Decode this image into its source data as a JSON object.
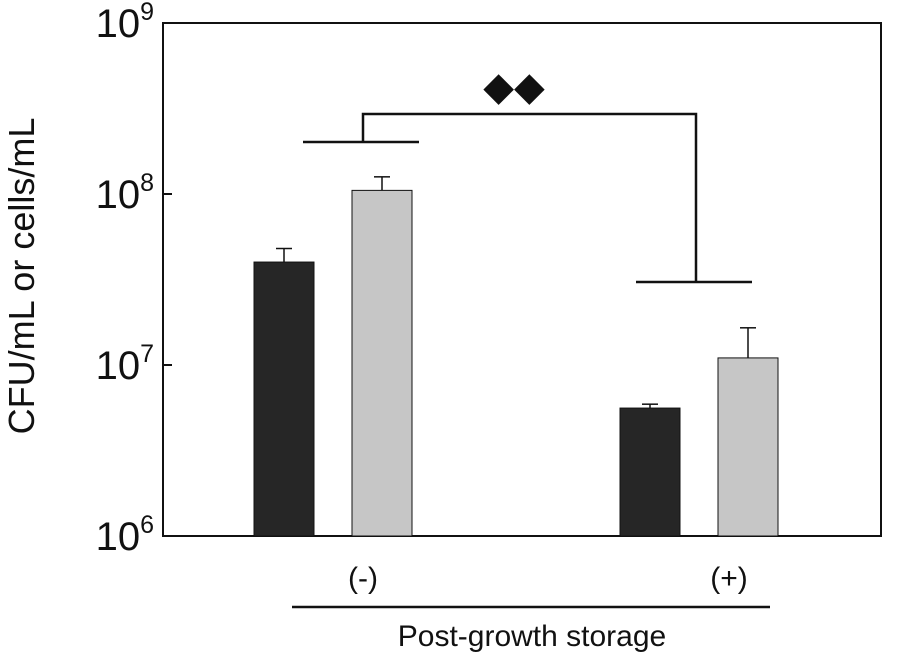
{
  "chart_data": {
    "type": "bar",
    "categories": [
      "(-)",
      "(+)"
    ],
    "series": [
      {
        "values": [
          40000000,
          5600000
        ],
        "errors": [
          48000000,
          5900000
        ],
        "color": "#262626"
      },
      {
        "values": [
          105000000,
          11000000
        ],
        "errors": [
          126000000,
          16500000
        ],
        "color": "#c6c6c6"
      }
    ],
    "ylabel": "CFU/mL or cells/mL",
    "xlabel": "Post-growth storage",
    "yscale": "log",
    "ylim": [
      1000000,
      1000000000
    ],
    "y_ticks": [
      {
        "base": "10",
        "exp": "6",
        "value": 1000000
      },
      {
        "base": "10",
        "exp": "7",
        "value": 10000000
      },
      {
        "base": "10",
        "exp": "8",
        "value": 100000000
      },
      {
        "base": "10",
        "exp": "9",
        "value": 1000000000
      }
    ],
    "annotation": "◆◆",
    "grid": false,
    "legend": "none"
  }
}
